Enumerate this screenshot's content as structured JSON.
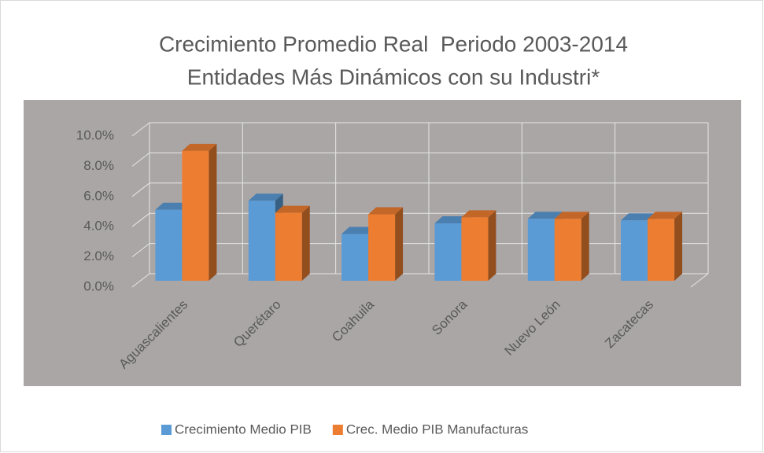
{
  "chart_data": {
    "type": "bar3d",
    "title": "Crecimiento Promedio Real  Periodo 2003-2014",
    "subtitle": "Entidades Más Dinámicos con su Industri*",
    "categories": [
      "Aguascalientes",
      "Querétaro",
      "Coahuila",
      "Sonora",
      "Nuevo León",
      "Zacatecas"
    ],
    "series": [
      {
        "name": "Crecimiento Medio PIB",
        "color": "#5b9bd5",
        "values": [
          4.7,
          5.3,
          3.1,
          3.8,
          4.1,
          4.0
        ]
      },
      {
        "name": "Crec. Medio PIB Manufacturas",
        "color": "#ed7d31",
        "values": [
          8.6,
          4.5,
          4.4,
          4.2,
          4.1,
          4.1
        ]
      }
    ],
    "ylim": [
      0,
      10
    ],
    "yticks": [
      {
        "value": 0,
        "label": "0.0%"
      },
      {
        "value": 2,
        "label": "2.0%"
      },
      {
        "value": 4,
        "label": "4.0%"
      },
      {
        "value": 6,
        "label": "6.0%"
      },
      {
        "value": 8,
        "label": "8.0%"
      },
      {
        "value": 10,
        "label": "10.0%"
      }
    ],
    "grid": true
  }
}
